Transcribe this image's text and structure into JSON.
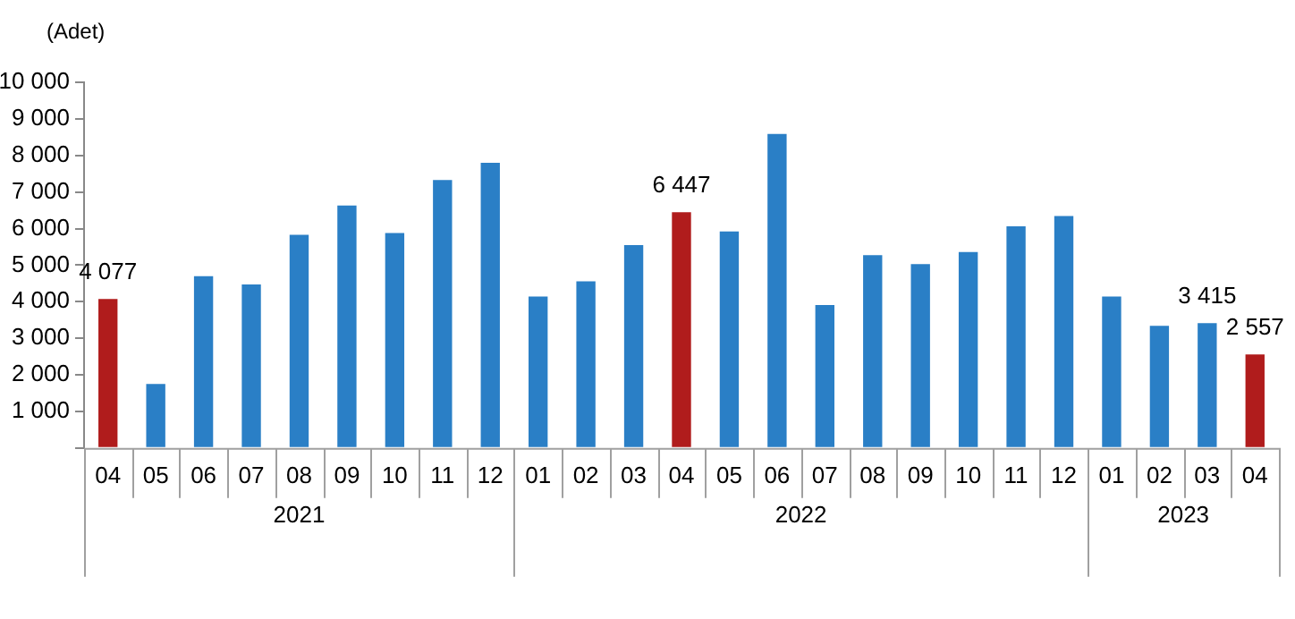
{
  "chart_data": {
    "type": "bar",
    "ylabel": "(Adet)",
    "categories": [
      "04",
      "05",
      "06",
      "07",
      "08",
      "09",
      "10",
      "11",
      "12",
      "01",
      "02",
      "03",
      "04",
      "05",
      "06",
      "07",
      "08",
      "09",
      "10",
      "11",
      "12",
      "01",
      "02",
      "03",
      "04"
    ],
    "annotations": [
      "2021",
      "2022",
      "2023"
    ],
    "values": [
      4077,
      1750,
      4700,
      4470,
      5830,
      6630,
      5880,
      7330,
      7800,
      4140,
      4560,
      5550,
      6447,
      5920,
      8590,
      3910,
      5270,
      5030,
      5360,
      6060,
      6340,
      4140,
      3340,
      3415,
      2557
    ],
    "colors": [
      "#b01c1c",
      "#2a7fc6",
      "#2a7fc6",
      "#2a7fc6",
      "#2a7fc6",
      "#2a7fc6",
      "#2a7fc6",
      "#2a7fc6",
      "#2a7fc6",
      "#2a7fc6",
      "#2a7fc6",
      "#2a7fc6",
      "#b01c1c",
      "#2a7fc6",
      "#2a7fc6",
      "#2a7fc6",
      "#2a7fc6",
      "#2a7fc6",
      "#2a7fc6",
      "#2a7fc6",
      "#2a7fc6",
      "#2a7fc6",
      "#2a7fc6",
      "#2a7fc6",
      "#b01c1c"
    ],
    "value_labels": [
      "4 077",
      null,
      null,
      null,
      null,
      null,
      null,
      null,
      null,
      null,
      null,
      null,
      "6 447",
      null,
      null,
      null,
      null,
      null,
      null,
      null,
      null,
      null,
      null,
      "3 415",
      "2 557"
    ],
    "ylim": [
      0,
      10000
    ],
    "yticks": [
      {
        "value": 0,
        "label": null
      },
      {
        "value": 1000,
        "label": "1 000"
      },
      {
        "value": 2000,
        "label": "2 000"
      },
      {
        "value": 3000,
        "label": "3 000"
      },
      {
        "value": 4000,
        "label": "4 000"
      },
      {
        "value": 5000,
        "label": "5 000"
      },
      {
        "value": 6000,
        "label": "6 000"
      },
      {
        "value": 7000,
        "label": "7 000"
      },
      {
        "value": 8000,
        "label": "8 000"
      },
      {
        "value": 9000,
        "label": "9 000"
      },
      {
        "value": 10000,
        "label": "10 000"
      }
    ],
    "grid": false,
    "legend": false
  }
}
